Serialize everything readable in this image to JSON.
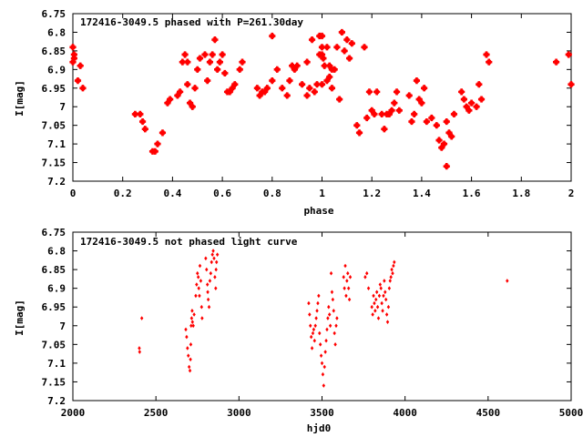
{
  "chart_data": [
    {
      "type": "scatter",
      "title": "172416-3049.5 phased with P=261.30day",
      "xlabel": "phase",
      "ylabel": "I[mag]",
      "xlim": [
        0,
        2
      ],
      "ylim": [
        7.2,
        6.75
      ],
      "y_reversed": true,
      "xticks": [
        0,
        0.2,
        0.4,
        0.6,
        0.8,
        1,
        1.2,
        1.4,
        1.6,
        1.8,
        2
      ],
      "xtick_labels": [
        "0",
        "0.2",
        "0.4",
        "0.6",
        "0.8",
        "1",
        "1.2",
        "1.4",
        "1.6",
        "1.8",
        "2"
      ],
      "yticks": [
        6.75,
        6.8,
        6.85,
        6.9,
        6.95,
        7,
        7.05,
        7.1,
        7.15,
        7.2
      ],
      "ytick_labels": [
        "6.75",
        "6.8",
        "6.85",
        "6.9",
        "6.95",
        "7",
        "7.05",
        "7.1",
        "7.15",
        "7.2"
      ],
      "grid": false,
      "marker_color": "#ff0000",
      "x": [
        0.0,
        0.005,
        0.02,
        0.03,
        0.04,
        0.25,
        0.27,
        0.28,
        0.29,
        0.32,
        0.33,
        0.34,
        0.36,
        0.38,
        0.39,
        0.42,
        0.43,
        0.44,
        0.45,
        0.46,
        0.46,
        0.47,
        0.48,
        0.49,
        0.5,
        0.51,
        0.53,
        0.54,
        0.55,
        0.56,
        0.57,
        0.58,
        0.59,
        0.6,
        0.61,
        0.62,
        0.63,
        0.64,
        0.65,
        0.67,
        0.68,
        0.74,
        0.75,
        0.76,
        0.77,
        0.78,
        0.8,
        0.8,
        0.82,
        0.84,
        0.86,
        0.87,
        0.88,
        0.89,
        0.9,
        0.92,
        0.94,
        0.95,
        0.96,
        0.97,
        0.98,
        0.99,
        1.0,
        1.0,
        1.01,
        1.02,
        1.03,
        1.04,
        1.05,
        1.06,
        1.07,
        1.08,
        1.09,
        1.1,
        1.11,
        1.12,
        1.14,
        1.15,
        1.17,
        1.18,
        1.19,
        1.2,
        1.21,
        1.22,
        1.24,
        1.25,
        1.26,
        1.27,
        1.28,
        1.29,
        1.3,
        1.31,
        1.35,
        1.36,
        1.37,
        1.38,
        1.39,
        1.4,
        1.41,
        1.42,
        1.44,
        1.46,
        1.47,
        1.48,
        1.49,
        1.5,
        1.5,
        1.51,
        1.52,
        1.53,
        1.56,
        1.57,
        1.58,
        1.59,
        1.6,
        1.62,
        1.63,
        1.64,
        1.66,
        1.67,
        1.94,
        1.99,
        2.0
      ],
      "y": [
        6.84,
        6.87,
        6.93,
        6.89,
        6.95,
        7.02,
        7.02,
        7.04,
        7.06,
        7.12,
        7.12,
        7.1,
        7.07,
        6.99,
        6.98,
        6.97,
        6.96,
        6.88,
        6.86,
        6.94,
        6.88,
        6.99,
        7.0,
        6.95,
        6.9,
        6.87,
        6.86,
        6.93,
        6.88,
        6.86,
        6.82,
        6.9,
        6.88,
        6.86,
        6.91,
        6.96,
        6.96,
        6.95,
        6.94,
        6.9,
        6.88,
        6.95,
        6.97,
        6.96,
        6.96,
        6.95,
        6.93,
        6.81,
        6.9,
        6.95,
        6.97,
        6.93,
        6.89,
        6.9,
        6.89,
        6.94,
        6.97,
        6.95,
        6.82,
        6.96,
        6.94,
        6.81,
        6.81,
        6.86,
        6.89,
        6.84,
        6.92,
        6.9,
        6.9,
        6.84,
        6.98,
        6.8,
        6.85,
        6.82,
        6.87,
        6.83,
        7.05,
        7.07,
        6.84,
        7.03,
        6.96,
        7.01,
        7.02,
        6.96,
        7.02,
        7.06,
        7.02,
        7.02,
        7.01,
        6.99,
        6.96,
        7.01,
        6.97,
        7.04,
        7.02,
        6.93,
        6.98,
        6.99,
        6.95,
        7.04,
        7.03,
        7.05,
        7.09,
        7.11,
        7.1,
        7.04,
        7.16,
        7.07,
        7.08,
        7.02,
        6.96,
        6.98,
        7.0,
        7.01,
        6.99,
        7.0,
        6.94,
        6.98,
        6.86,
        6.88,
        6.88,
        6.86,
        6.94
      ],
      "x2": [
        1.0,
        1.005,
        1.02,
        1.03,
        1.04,
        0.94,
        0.99,
        1.0,
        0.0,
        0.005
      ],
      "y2": [
        6.84,
        6.87,
        6.93,
        6.89,
        6.95,
        6.88,
        6.86,
        6.94,
        6.88,
        6.86
      ]
    },
    {
      "type": "scatter",
      "title": "172416-3049.5 not phased light curve",
      "xlabel": "hjd0",
      "ylabel": "I[mag]",
      "xlim": [
        2000,
        5000
      ],
      "ylim": [
        7.2,
        6.75
      ],
      "y_reversed": true,
      "xticks": [
        2000,
        2500,
        3000,
        3500,
        4000,
        4500,
        5000
      ],
      "xtick_labels": [
        "2000",
        "2500",
        "3000",
        "3500",
        "4000",
        "4500",
        "5000"
      ],
      "yticks": [
        6.75,
        6.8,
        6.85,
        6.9,
        6.95,
        7,
        7.05,
        7.1,
        7.15,
        7.2
      ],
      "ytick_labels": [
        "6.75",
        "6.8",
        "6.85",
        "6.9",
        "6.95",
        "7",
        "7.05",
        "7.1",
        "7.15",
        "7.2"
      ],
      "grid": false,
      "marker_color": "#ff0000",
      "x": [
        2400,
        2402,
        2415,
        2680,
        2685,
        2690,
        2695,
        2700,
        2705,
        2708,
        2710,
        2712,
        2715,
        2718,
        2720,
        2725,
        2730,
        2740,
        2745,
        2750,
        2755,
        2758,
        2762,
        2765,
        2770,
        2775,
        2778,
        2800,
        2805,
        2810,
        2812,
        2815,
        2820,
        2825,
        2830,
        2835,
        2840,
        2845,
        2850,
        2855,
        2860,
        2862,
        2865,
        2870,
        3420,
        3425,
        3430,
        3435,
        3440,
        3445,
        3450,
        3455,
        3460,
        3465,
        3470,
        3475,
        3480,
        3485,
        3490,
        3495,
        3500,
        3505,
        3510,
        3515,
        3520,
        3525,
        3530,
        3535,
        3540,
        3545,
        3550,
        3555,
        3560,
        3565,
        3570,
        3575,
        3580,
        3585,
        3590,
        3630,
        3635,
        3640,
        3645,
        3650,
        3655,
        3660,
        3665,
        3670,
        3760,
        3770,
        3780,
        3800,
        3805,
        3810,
        3815,
        3820,
        3825,
        3830,
        3835,
        3840,
        3845,
        3850,
        3855,
        3860,
        3865,
        3870,
        3875,
        3880,
        3885,
        3890,
        3895,
        3900,
        3905,
        3910,
        3915,
        3920,
        3925,
        3930,
        3935,
        4615
      ],
      "y": [
        7.06,
        7.07,
        6.98,
        7.01,
        7.03,
        7.06,
        7.08,
        7.11,
        7.12,
        7.09,
        7.05,
        7.0,
        6.98,
        6.96,
        6.99,
        7.0,
        6.97,
        6.92,
        6.89,
        6.86,
        6.87,
        6.9,
        6.92,
        6.84,
        6.88,
        6.95,
        6.98,
        6.82,
        6.85,
        6.89,
        6.91,
        6.93,
        6.95,
        6.88,
        6.86,
        6.83,
        6.81,
        6.8,
        6.82,
        6.87,
        6.9,
        6.85,
        6.83,
        6.81,
        6.94,
        6.97,
        7.0,
        7.03,
        7.06,
        7.02,
        7.01,
        7.04,
        7.0,
        6.98,
        6.96,
        6.94,
        6.92,
        7.02,
        7.05,
        7.08,
        7.1,
        7.13,
        7.16,
        7.11,
        7.07,
        7.04,
        7.01,
        6.98,
        6.95,
        6.97,
        7.0,
        6.86,
        6.91,
        6.93,
        6.96,
        7.02,
        7.05,
        7.0,
        6.98,
        6.87,
        6.9,
        6.84,
        6.92,
        6.88,
        6.86,
        6.9,
        6.93,
        6.87,
        6.87,
        6.86,
        6.9,
        6.95,
        6.97,
        6.92,
        6.94,
        6.96,
        6.93,
        6.91,
        6.95,
        6.98,
        6.92,
        6.89,
        6.9,
        6.94,
        6.96,
        6.92,
        6.88,
        6.91,
        6.93,
        6.97,
        6.99,
        6.95,
        6.9,
        6.88,
        6.87,
        6.85,
        6.86,
        6.84,
        6.83,
        6.88
      ],
      "x2": [],
      "y2": []
    }
  ]
}
